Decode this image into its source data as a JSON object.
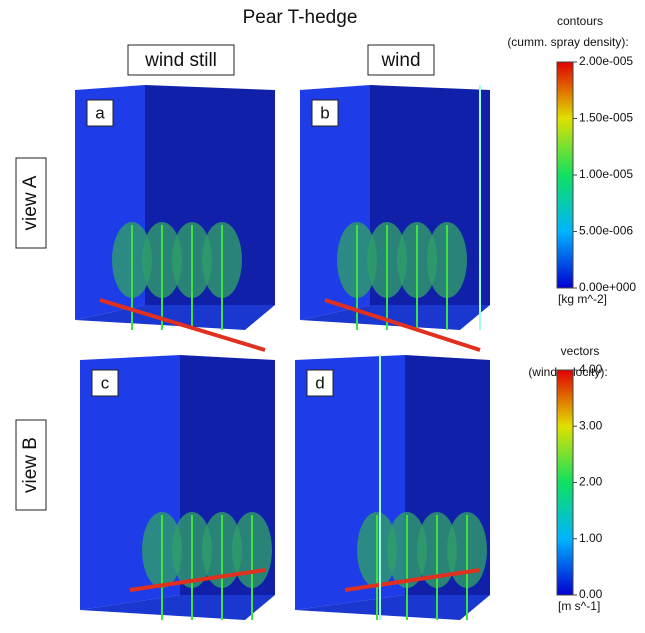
{
  "title": "Pear T-hedge",
  "columns": [
    "wind still",
    "wind"
  ],
  "rows": [
    "view A",
    "view B"
  ],
  "panels": [
    "a",
    "b",
    "c",
    "d"
  ],
  "colorbars": [
    {
      "title": "contours",
      "subtitle": "(cumm. spray density):",
      "unit": "[kg m^-2]",
      "ticks": [
        {
          "value": 2e-05,
          "label": "2.00e-005"
        },
        {
          "value": 1.5e-05,
          "label": "1.50e-005"
        },
        {
          "value": 1e-05,
          "label": "1.00e-005"
        },
        {
          "value": 5e-06,
          "label": "5.00e-006"
        },
        {
          "value": 0,
          "label": "0.00e+000"
        }
      ]
    },
    {
      "title": "vectors",
      "subtitle": "(wind velocity):",
      "unit": "[m s^-1]",
      "ticks": [
        {
          "value": 4,
          "label": "4.00"
        },
        {
          "value": 3,
          "label": "3.00"
        },
        {
          "value": 2,
          "label": "2.00"
        },
        {
          "value": 1,
          "label": "1.00"
        },
        {
          "value": 0,
          "label": "0.00"
        }
      ]
    }
  ]
}
